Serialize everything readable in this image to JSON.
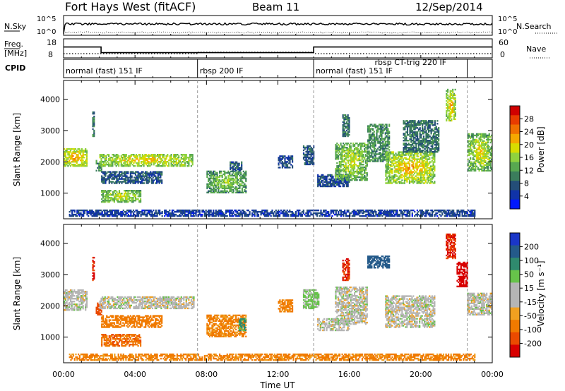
{
  "header": {
    "station": "Fort Hays West (fitACF)",
    "beam": "Beam 11",
    "date": "12/Sep/2014"
  },
  "top_panels": {
    "nsky_label": "N.Sky",
    "nsky_ticks": [
      "10^5",
      "10^0"
    ],
    "nsearch_label": "N.Search",
    "nsearch_ticks": [
      "10^5",
      "10^0"
    ],
    "freq_label_line1": "Freq.",
    "freq_label_line2": "[MHz]",
    "freq_ticks": [
      "18",
      "8"
    ],
    "nave_label": "Nave",
    "nave_ticks": [
      "60",
      "0"
    ],
    "cpid_label": "CPID",
    "modes": [
      {
        "start_hr": 0.0,
        "end_hr": 7.5,
        "label": "normal (fast) 151 IF"
      },
      {
        "start_hr": 7.5,
        "end_hr": 14.0,
        "label": "rbsp 200 IF"
      },
      {
        "start_hr": 14.0,
        "end_hr": 17.3,
        "label": "normal (fast) 151 IF"
      },
      {
        "start_hr": 17.3,
        "end_hr": 22.6,
        "label": "rbsp CT-trig 220 IF"
      }
    ],
    "mode_boundaries_hr": [
      7.5,
      14.0,
      22.6
    ],
    "freq_steps": [
      {
        "start_hr": 0,
        "end_hr": 2.1,
        "mhz": 14.7
      },
      {
        "start_hr": 2.1,
        "end_hr": 14.0,
        "mhz": 10.7
      },
      {
        "start_hr": 14.0,
        "end_hr": 24,
        "mhz": 14.7
      }
    ]
  },
  "axes": {
    "xlabel": "Time UT",
    "x_ticks": [
      "00:00",
      "04:00",
      "08:00",
      "12:00",
      "16:00",
      "20:00",
      "00:00"
    ],
    "ylabel": "Slant Range [km]",
    "y_ticks": [
      "1000",
      "2000",
      "3000",
      "4000"
    ]
  },
  "colorbars": {
    "power": {
      "label": "Power [dB]",
      "ticks": [
        "28",
        "24",
        "20",
        "16",
        "12",
        "8",
        "4"
      ],
      "colors": [
        "#0018ff",
        "#1033a8",
        "#244e78",
        "#3b7d5c",
        "#58a850",
        "#8fd23e",
        "#d8dd00",
        "#f5a800",
        "#f07000",
        "#e83c00",
        "#d00000"
      ]
    },
    "velocity": {
      "label": "Velocity [m s⁻¹]",
      "ticks": [
        "200",
        "100",
        "50",
        "15",
        "-15",
        "-50",
        "-100",
        "-200"
      ],
      "colors": [
        "#1a36c8",
        "#245a8a",
        "#2f8a6e",
        "#67c34a",
        "#b5b5b5",
        "#b5b5b5",
        "#f0a020",
        "#f07a00",
        "#ea4a00",
        "#d80000"
      ]
    }
  },
  "chart_data": [
    {
      "type": "heatmap",
      "title": "Power",
      "xlabel": "Time UT",
      "ylabel": "Slant Range [km]",
      "xlim_hr": [
        0,
        24
      ],
      "ylim_km": [
        180,
        4600
      ],
      "colorbar": {
        "label": "Power [dB]",
        "range": [
          0,
          30
        ]
      },
      "regions": [
        {
          "t": [
            0.0,
            1.3
          ],
          "r": [
            1850,
            2400
          ],
          "db": 16,
          "core": 22
        },
        {
          "t": [
            1.6,
            1.7
          ],
          "r": [
            2800,
            3600
          ],
          "db": 8
        },
        {
          "t": [
            1.8,
            2.1
          ],
          "r": [
            1700,
            2050
          ],
          "db": 10
        },
        {
          "t": [
            2.0,
            7.2
          ],
          "r": [
            1850,
            2250
          ],
          "db": 14,
          "core": 20
        },
        {
          "t": [
            2.1,
            5.5
          ],
          "r": [
            1300,
            1700
          ],
          "db": 6
        },
        {
          "t": [
            2.1,
            4.3
          ],
          "r": [
            700,
            1100
          ],
          "db": 12,
          "core": 18
        },
        {
          "t": [
            8.0,
            10.2
          ],
          "r": [
            1000,
            1700
          ],
          "db": 10,
          "core": 16
        },
        {
          "t": [
            9.3,
            10.0
          ],
          "r": [
            1700,
            2000
          ],
          "db": 6
        },
        {
          "t": [
            12.0,
            12.8
          ],
          "r": [
            1800,
            2200
          ],
          "db": 5
        },
        {
          "t": [
            13.4,
            14.0
          ],
          "r": [
            1900,
            2500
          ],
          "db": 6
        },
        {
          "t": [
            14.2,
            16.0
          ],
          "r": [
            1200,
            1600
          ],
          "db": 5
        },
        {
          "t": [
            15.2,
            17.0
          ],
          "r": [
            1400,
            2600
          ],
          "db": 12,
          "core": 18
        },
        {
          "t": [
            15.6,
            16.0
          ],
          "r": [
            2800,
            3500
          ],
          "db": 8
        },
        {
          "t": [
            17.0,
            18.2
          ],
          "r": [
            2000,
            3200
          ],
          "db": 10
        },
        {
          "t": [
            18.0,
            20.8
          ],
          "r": [
            1300,
            2300
          ],
          "db": 14,
          "core": 22
        },
        {
          "t": [
            19.0,
            21.0
          ],
          "r": [
            2300,
            3300
          ],
          "db": 8
        },
        {
          "t": [
            21.4,
            21.9
          ],
          "r": [
            3300,
            4300
          ],
          "db": 14,
          "core": 22
        },
        {
          "t": [
            22.6,
            24.0
          ],
          "r": [
            1700,
            2900
          ],
          "db": 12,
          "core": 20
        },
        {
          "t": [
            0.3,
            23.0
          ],
          "r": [
            250,
            450
          ],
          "db": 4
        }
      ]
    },
    {
      "type": "heatmap",
      "title": "Velocity",
      "xlabel": "Time UT",
      "ylabel": "Slant Range [km]",
      "xlim_hr": [
        0,
        24
      ],
      "ylim_km": [
        180,
        4600
      ],
      "colorbar": {
        "label": "Velocity [m s-1]",
        "range": [
          -250,
          250
        ]
      },
      "regions": [
        {
          "t": [
            0.0,
            1.3
          ],
          "r": [
            1850,
            2500
          ],
          "v": 0
        },
        {
          "t": [
            1.6,
            1.7
          ],
          "r": [
            2800,
            3600
          ],
          "v": -200
        },
        {
          "t": [
            1.8,
            2.1
          ],
          "r": [
            1700,
            2100
          ],
          "v": -120
        },
        {
          "t": [
            2.0,
            7.3
          ],
          "r": [
            1900,
            2300
          ],
          "v": 0
        },
        {
          "t": [
            2.1,
            5.5
          ],
          "r": [
            1300,
            1700
          ],
          "v": -80
        },
        {
          "t": [
            2.1,
            4.3
          ],
          "r": [
            700,
            1100
          ],
          "v": -90
        },
        {
          "t": [
            8.0,
            10.2
          ],
          "r": [
            1000,
            1700
          ],
          "v": -60
        },
        {
          "t": [
            9.8,
            10.2
          ],
          "r": [
            1200,
            1600
          ],
          "v": 60
        },
        {
          "t": [
            12.0,
            12.8
          ],
          "r": [
            1800,
            2200
          ],
          "v": -60
        },
        {
          "t": [
            13.4,
            14.3
          ],
          "r": [
            1900,
            2500
          ],
          "v": 25
        },
        {
          "t": [
            14.2,
            16.0
          ],
          "r": [
            1200,
            1600
          ],
          "v": 0
        },
        {
          "t": [
            15.2,
            17.0
          ],
          "r": [
            1400,
            2600
          ],
          "v": 0
        },
        {
          "t": [
            15.6,
            16.0
          ],
          "r": [
            2800,
            3500
          ],
          "v": -200
        },
        {
          "t": [
            17.0,
            18.2
          ],
          "r": [
            3200,
            3600
          ],
          "v": 150
        },
        {
          "t": [
            18.0,
            20.8
          ],
          "r": [
            1300,
            2300
          ],
          "v": 0
        },
        {
          "t": [
            21.4,
            21.9
          ],
          "r": [
            3500,
            4300
          ],
          "v": -200
        },
        {
          "t": [
            22.0,
            22.6
          ],
          "r": [
            2600,
            3400
          ],
          "v": -220
        },
        {
          "t": [
            22.6,
            24.0
          ],
          "r": [
            1700,
            2400
          ],
          "v": 0
        },
        {
          "t": [
            0.3,
            23.0
          ],
          "r": [
            250,
            450
          ],
          "v": -60
        }
      ]
    }
  ]
}
